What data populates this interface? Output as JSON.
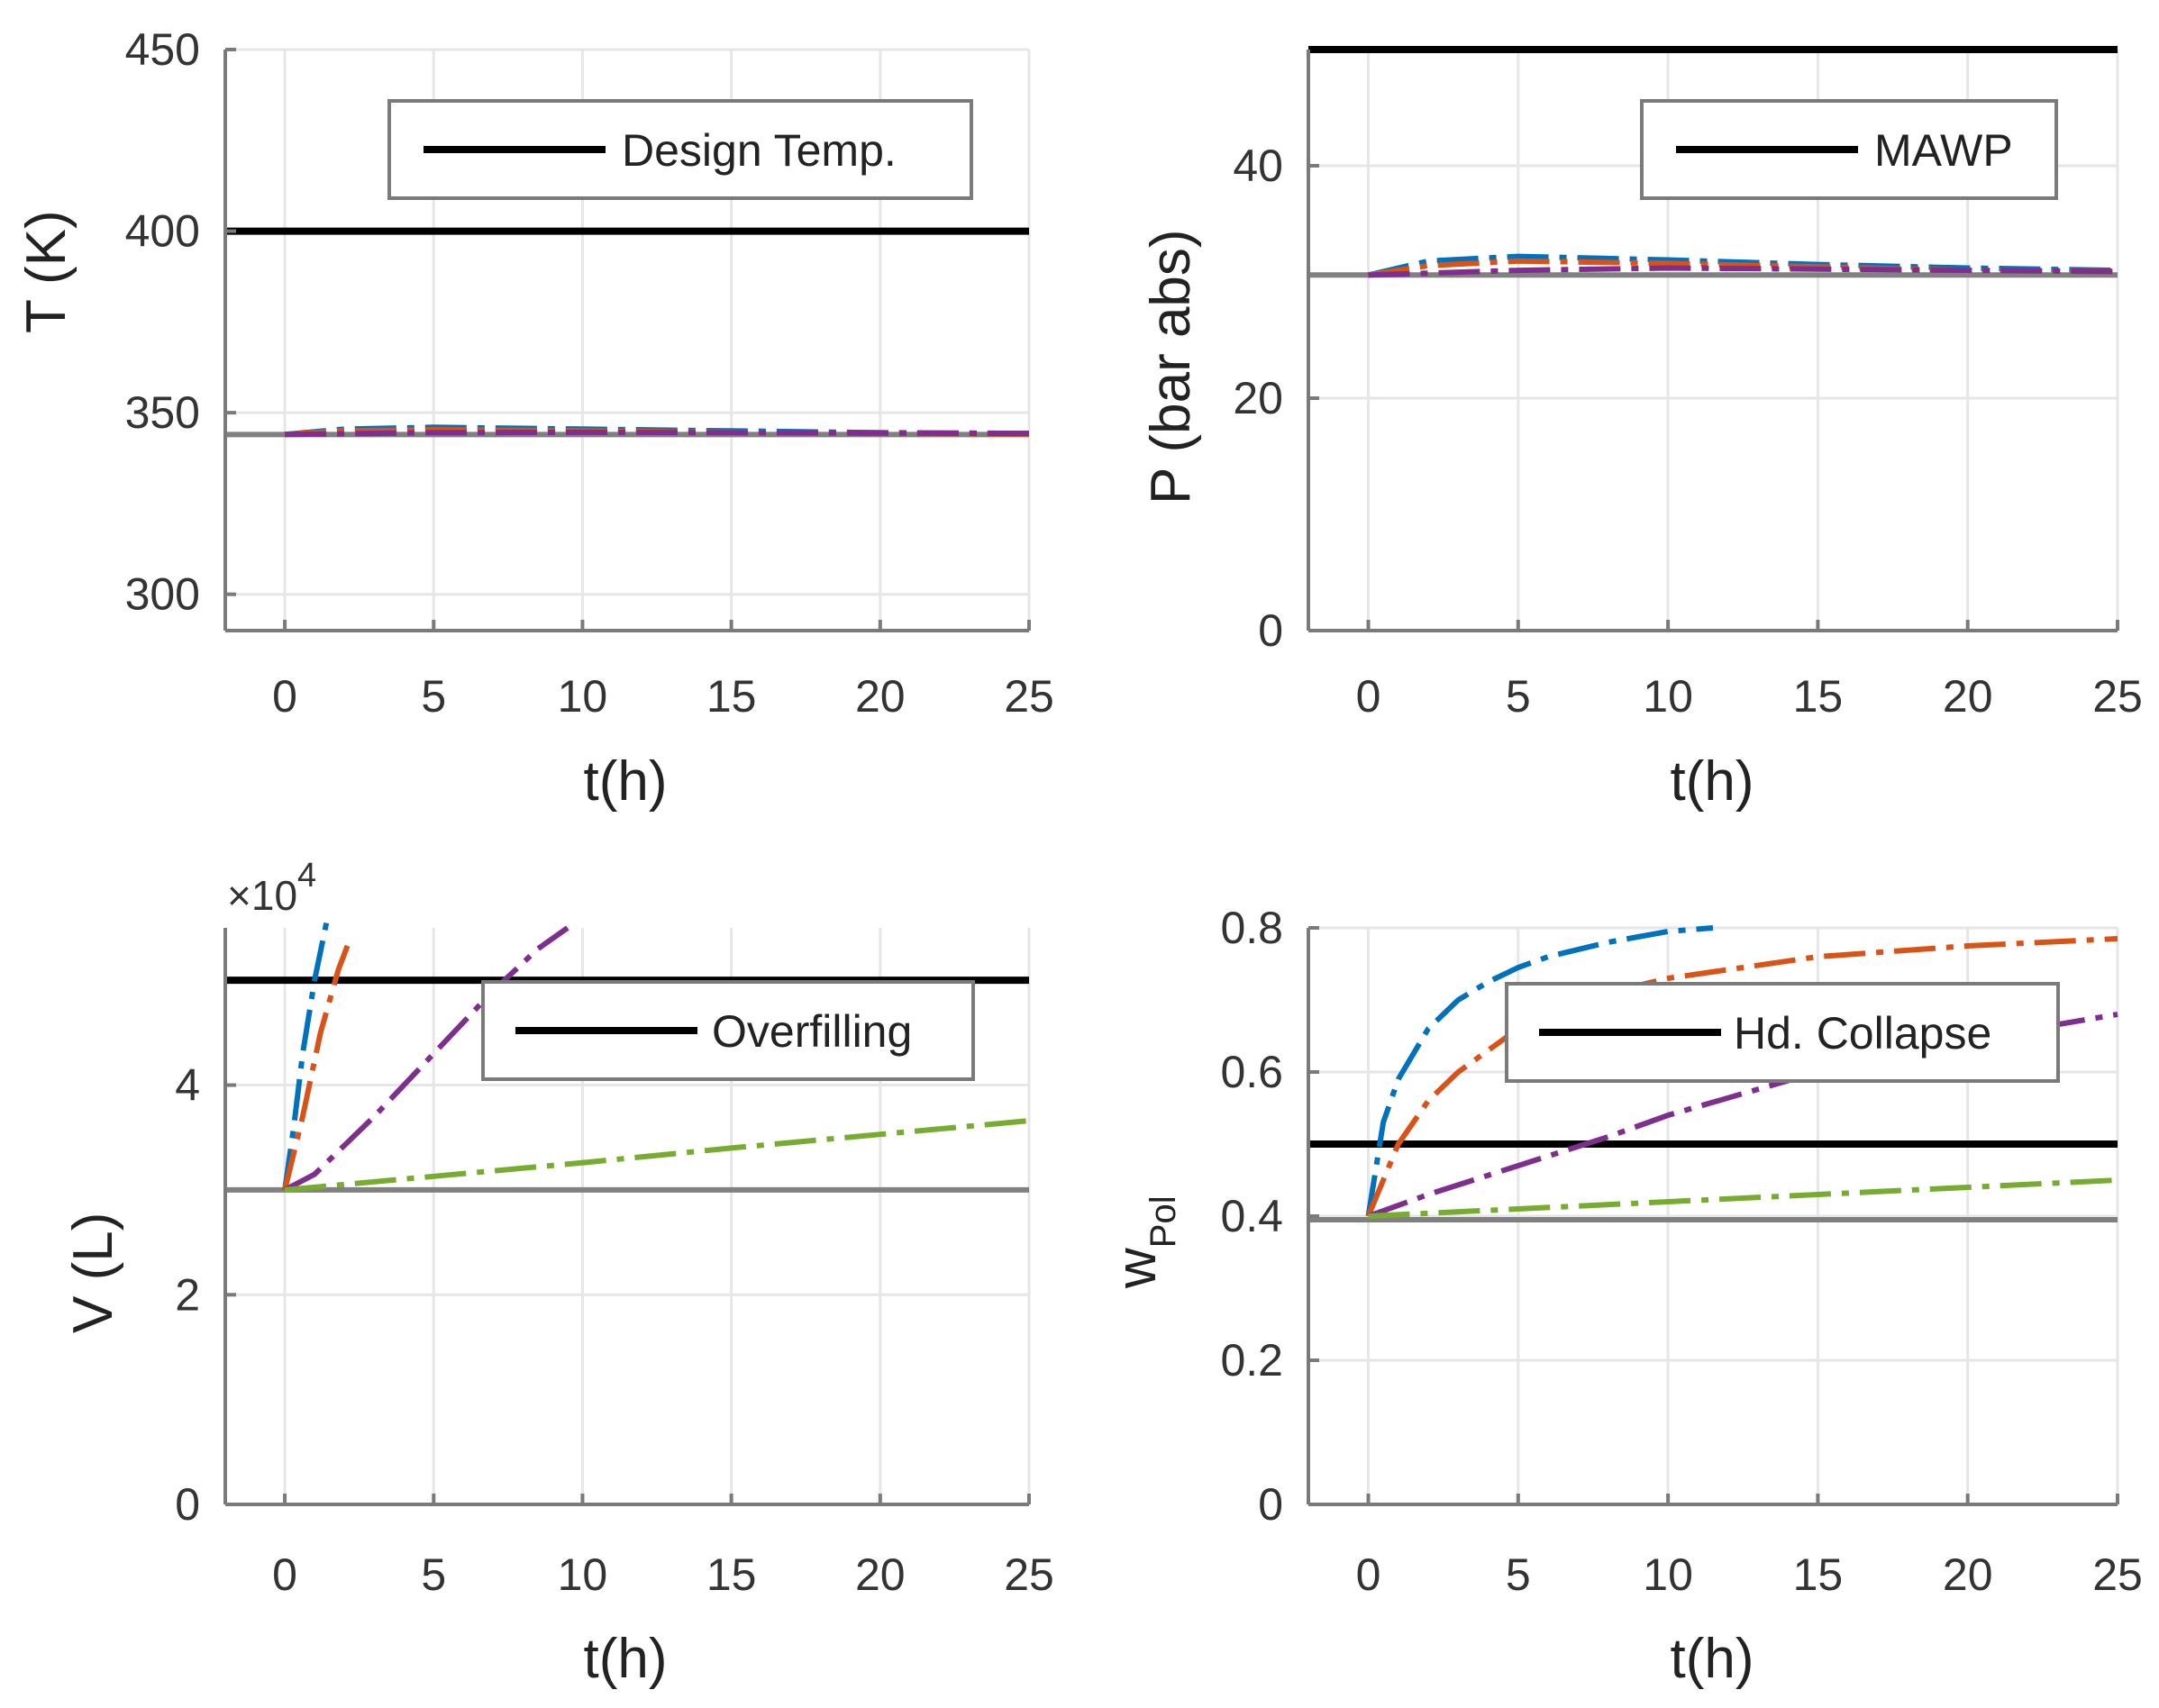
{
  "chart_data": [
    {
      "type": "line",
      "id": "temperature",
      "ylabel": "T (K)",
      "xlabel": "t(h)",
      "xlim": [
        -2,
        25
      ],
      "ylim": [
        290,
        450
      ],
      "xticks": [
        0,
        5,
        10,
        15,
        20,
        25
      ],
      "yticks": [
        300,
        350,
        400,
        450
      ],
      "legend": {
        "position": "top-right",
        "label": "Design Temp."
      },
      "limit_line": {
        "value": 400,
        "color": "#000000"
      },
      "baseline": {
        "value": 344,
        "color": "#808080"
      },
      "series": [
        {
          "name": "blue",
          "color": "#0072BD",
          "x": [
            0,
            2,
            5,
            10,
            15,
            20,
            25
          ],
          "y": [
            344,
            345.5,
            346,
            345.5,
            345,
            344.5,
            344.3
          ]
        },
        {
          "name": "orange",
          "color": "#D95319",
          "x": [
            0,
            2,
            5,
            10,
            15,
            20,
            25
          ],
          "y": [
            344,
            345,
            345.3,
            345,
            344.6,
            344.3,
            344.1
          ]
        },
        {
          "name": "purple",
          "color": "#7E2F8E",
          "x": [
            0,
            5,
            10,
            15,
            20,
            25
          ],
          "y": [
            344,
            344.5,
            344.6,
            344.5,
            344.4,
            344.3
          ]
        }
      ]
    },
    {
      "type": "line",
      "id": "pressure",
      "ylabel": "P (bar abs)",
      "xlabel": "t(h)",
      "xlim": [
        -2,
        25
      ],
      "ylim": [
        0,
        50
      ],
      "xticks": [
        0,
        5,
        10,
        15,
        20,
        25
      ],
      "yticks": [
        0,
        20,
        40
      ],
      "legend": {
        "position": "top-right",
        "label": "MAWP"
      },
      "limit_line": {
        "value": 50,
        "color": "#000000"
      },
      "baseline": {
        "value": 30.6,
        "color": "#808080"
      },
      "series": [
        {
          "name": "blue",
          "color": "#0072BD",
          "x": [
            0,
            2,
            5,
            10,
            15,
            20,
            25
          ],
          "y": [
            30.6,
            31.8,
            32.2,
            31.9,
            31.5,
            31.2,
            31.0
          ]
        },
        {
          "name": "orange",
          "color": "#D95319",
          "x": [
            0,
            2,
            5,
            10,
            15,
            20,
            25
          ],
          "y": [
            30.6,
            31.4,
            31.8,
            31.6,
            31.3,
            31.0,
            30.9
          ]
        },
        {
          "name": "purple",
          "color": "#7E2F8E",
          "x": [
            0,
            5,
            10,
            15,
            20,
            25
          ],
          "y": [
            30.6,
            31.0,
            31.2,
            31.1,
            31.0,
            30.9
          ]
        }
      ]
    },
    {
      "type": "line",
      "id": "volume",
      "ylabel": "V (L)",
      "xlabel": "t(h)",
      "y_multiplier": "×10",
      "y_multiplier_exp": "4",
      "xlim": [
        -2,
        25
      ],
      "ylim": [
        0,
        5.5
      ],
      "xticks": [
        0,
        5,
        10,
        15,
        20,
        25
      ],
      "yticks": [
        0,
        2,
        4
      ],
      "legend": {
        "position": "top-right",
        "label": "Overfilling"
      },
      "limit_line": {
        "value": 5.0,
        "color": "#000000"
      },
      "baseline": {
        "value": 3.0,
        "color": "#808080"
      },
      "series": [
        {
          "name": "blue",
          "color": "#0072BD",
          "x": [
            0,
            0.3,
            0.6,
            1.0,
            1.4
          ],
          "y": [
            3.0,
            3.6,
            4.3,
            5.0,
            5.55
          ]
        },
        {
          "name": "orange",
          "color": "#D95319",
          "x": [
            0,
            0.6,
            1.2,
            1.8,
            2.2
          ],
          "y": [
            3.0,
            3.7,
            4.5,
            5.1,
            5.4
          ]
        },
        {
          "name": "purple",
          "color": "#7E2F8E",
          "x": [
            0,
            1,
            3,
            5,
            7,
            8.5,
            9.5
          ],
          "y": [
            3.0,
            3.15,
            3.7,
            4.3,
            4.9,
            5.3,
            5.5
          ]
        },
        {
          "name": "green",
          "color": "#77AC30",
          "x": [
            0,
            5,
            10,
            15,
            20,
            25
          ],
          "y": [
            3.0,
            3.13,
            3.26,
            3.4,
            3.53,
            3.66
          ]
        }
      ]
    },
    {
      "type": "line",
      "id": "polymer-fraction",
      "ylabel": "w",
      "ylabel_sub": "Pol",
      "xlabel": "t(h)",
      "xlim": [
        -2,
        25
      ],
      "ylim": [
        0,
        0.8
      ],
      "xticks": [
        0,
        5,
        10,
        15,
        20,
        25
      ],
      "yticks": [
        0,
        0.2,
        0.4,
        0.6,
        0.8
      ],
      "legend": {
        "position": "top-right",
        "label": "Hd. Collapse"
      },
      "limit_line": {
        "value": 0.5,
        "color": "#000000"
      },
      "baseline": {
        "value": 0.395,
        "color": "#808080"
      },
      "series": [
        {
          "name": "blue",
          "color": "#0072BD",
          "x": [
            0,
            0.5,
            1,
            2,
            3,
            4,
            5,
            6,
            8,
            10,
            11.5
          ],
          "y": [
            0.4,
            0.53,
            0.59,
            0.66,
            0.7,
            0.725,
            0.745,
            0.76,
            0.78,
            0.795,
            0.8
          ]
        },
        {
          "name": "orange",
          "color": "#D95319",
          "x": [
            0,
            1,
            2,
            3,
            5,
            8,
            10,
            15,
            20,
            25
          ],
          "y": [
            0.4,
            0.5,
            0.56,
            0.6,
            0.66,
            0.71,
            0.73,
            0.76,
            0.775,
            0.785
          ]
        },
        {
          "name": "purple",
          "color": "#7E2F8E",
          "x": [
            0,
            2,
            5,
            8,
            10,
            15,
            20,
            25
          ],
          "y": [
            0.4,
            0.43,
            0.47,
            0.51,
            0.54,
            0.6,
            0.645,
            0.68
          ]
        },
        {
          "name": "green",
          "color": "#77AC30",
          "x": [
            0,
            5,
            10,
            15,
            20,
            25
          ],
          "y": [
            0.4,
            0.41,
            0.42,
            0.43,
            0.44,
            0.45
          ]
        }
      ]
    }
  ]
}
